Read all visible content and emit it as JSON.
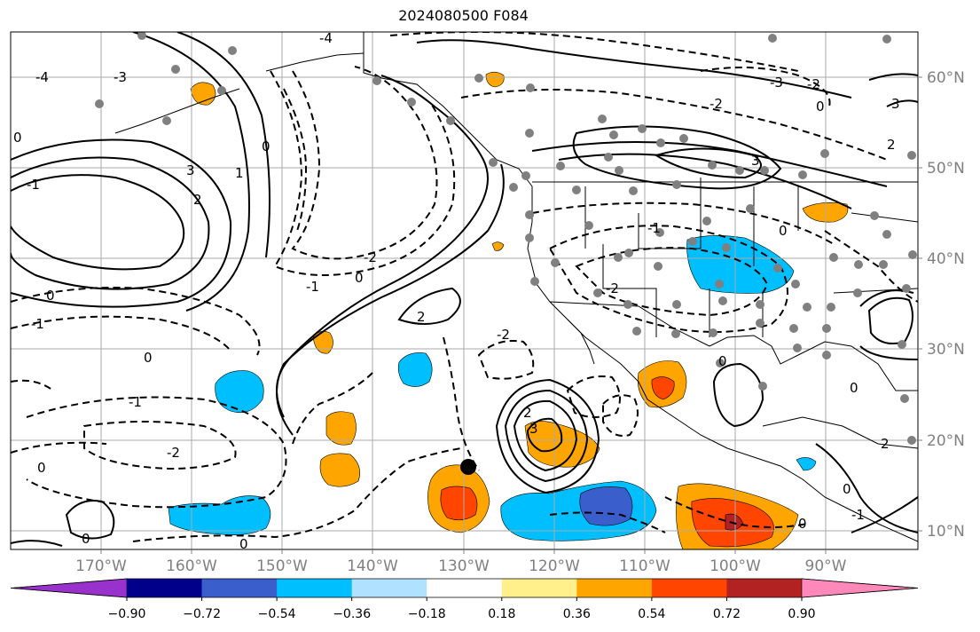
{
  "title": "2024080500 F084",
  "map": {
    "lat_labels": [
      "60°N",
      "50°N",
      "40°N",
      "30°N",
      "20°N",
      "10°N"
    ],
    "lon_labels": [
      "170°W",
      "160°W",
      "150°W",
      "140°W",
      "130°W",
      "120°W",
      "110°W",
      "100°W",
      "90°W"
    ],
    "contour_labels": [
      "-4",
      "-3",
      "-2",
      "-1",
      "0",
      "1",
      "2",
      "3"
    ]
  },
  "colorbar": {
    "ticks": [
      "−0.90",
      "−0.72",
      "−0.54",
      "−0.36",
      "−0.18",
      "0.18",
      "0.36",
      "0.54",
      "0.72",
      "0.90"
    ],
    "colors": [
      "#9932cc",
      "#00008b",
      "#3a5fcd",
      "#00bfff",
      "#b0e2ff",
      "#ffffff",
      "#fff08c",
      "#ffa500",
      "#ff4500",
      "#b22222",
      "#ff88bb"
    ]
  },
  "colors": {
    "grid": "#aaaaaa",
    "text_axis": "#808080",
    "station": "#808080"
  }
}
